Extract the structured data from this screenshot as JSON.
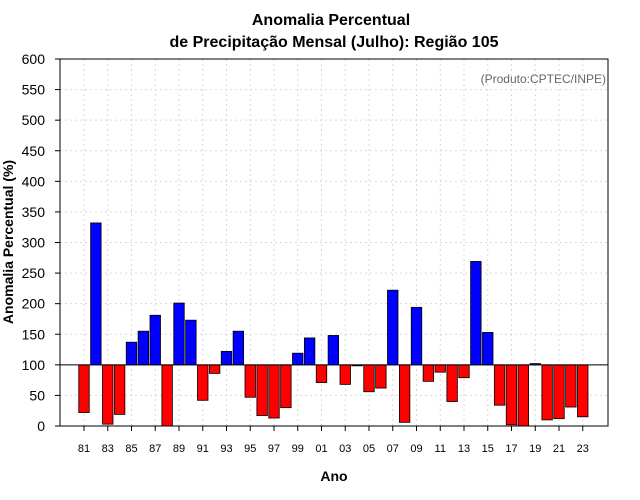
{
  "colors": {
    "positive": "#0000ff",
    "negative": "#ff0000"
  },
  "chart_data": {
    "type": "bar",
    "title_line1": "Anomalia Percentual",
    "title_line2": "de Precipitação Mensal (Julho): Região 105",
    "credit": "(Produto:CPTEC/INPE)",
    "xlabel": "Ano",
    "ylabel": "Anomalia Percentual (%)",
    "ylim": [
      0,
      600
    ],
    "yticks": [
      0,
      50,
      100,
      150,
      200,
      250,
      300,
      350,
      400,
      450,
      500,
      550,
      600
    ],
    "baseline": 100,
    "grid": true,
    "categories": [
      "81",
      "82",
      "83",
      "84",
      "85",
      "86",
      "87",
      "88",
      "89",
      "90",
      "91",
      "92",
      "93",
      "94",
      "95",
      "96",
      "97",
      "98",
      "99",
      "00",
      "01",
      "02",
      "03",
      "04",
      "05",
      "06",
      "07",
      "08",
      "09",
      "10",
      "11",
      "12",
      "13",
      "14",
      "15",
      "16",
      "17",
      "18",
      "19",
      "20",
      "21",
      "22",
      "23"
    ],
    "xtick_labels": [
      "81",
      "83",
      "85",
      "87",
      "89",
      "91",
      "93",
      "95",
      "97",
      "99",
      "01",
      "03",
      "05",
      "07",
      "09",
      "11",
      "13",
      "15",
      "17",
      "19",
      "21",
      "23"
    ],
    "values": [
      22,
      332,
      3,
      19,
      137,
      155,
      181,
      0,
      201,
      173,
      42,
      86,
      122,
      155,
      47,
      17,
      13,
      30,
      119,
      144,
      71,
      148,
      68,
      99,
      56,
      62,
      222,
      6,
      194,
      73,
      88,
      40,
      79,
      269,
      153,
      34,
      2,
      0,
      102,
      10,
      12,
      31,
      15
    ]
  }
}
